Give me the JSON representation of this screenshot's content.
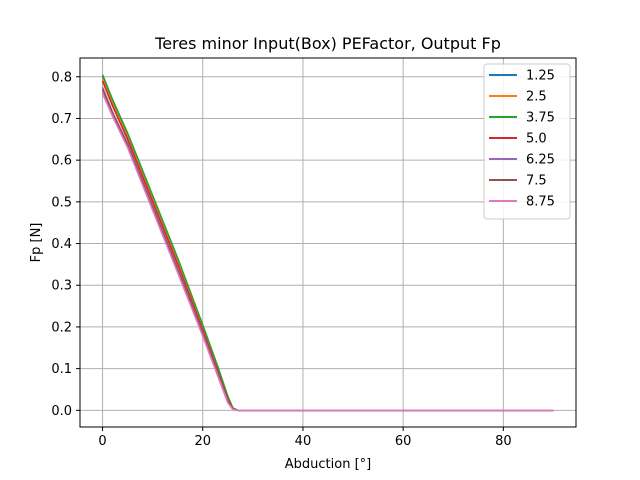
{
  "chart_data": {
    "type": "line",
    "title": "Teres minor Input(Box) PEFactor, Output Fp",
    "xlabel": "Abduction [°]",
    "ylabel": "Fp [N]",
    "xlim": [
      -4.5,
      94.5
    ],
    "ylim": [
      -0.04,
      0.845
    ],
    "xticks": [
      0,
      20,
      40,
      60,
      80
    ],
    "yticks": [
      0.0,
      0.1,
      0.2,
      0.3,
      0.4,
      0.5,
      0.6,
      0.7,
      0.8
    ],
    "ytick_labels": [
      "0.0",
      "0.1",
      "0.2",
      "0.3",
      "0.4",
      "0.5",
      "0.6",
      "0.7",
      "0.8"
    ],
    "grid": true,
    "legend_position": "top-right",
    "colors": [
      "#1f77b4",
      "#ff7f0e",
      "#2ca02c",
      "#d62728",
      "#9467bd",
      "#8c564b",
      "#e377c2"
    ],
    "series": [
      {
        "name": "1.25",
        "x": [
          0,
          2,
          5,
          10,
          15,
          20,
          23,
          25,
          26,
          27,
          30,
          40,
          50,
          60,
          70,
          80,
          90
        ],
        "y": [
          0.8,
          0.74,
          0.66,
          0.51,
          0.36,
          0.2,
          0.1,
          0.03,
          0.005,
          0.0,
          0.0,
          0.0,
          0.0,
          0.0,
          0.0,
          0.0,
          0.0
        ]
      },
      {
        "name": "2.5",
        "x": [
          0,
          2,
          5,
          10,
          15,
          20,
          23,
          25,
          26,
          27,
          30,
          40,
          50,
          60,
          70,
          80,
          90
        ],
        "y": [
          0.795,
          0.735,
          0.655,
          0.505,
          0.355,
          0.196,
          0.097,
          0.028,
          0.004,
          0.0,
          0.0,
          0.0,
          0.0,
          0.0,
          0.0,
          0.0,
          0.0
        ]
      },
      {
        "name": "3.75",
        "x": [
          0,
          2,
          5,
          10,
          15,
          20,
          23,
          25,
          26,
          27,
          30,
          40,
          50,
          60,
          70,
          80,
          90
        ],
        "y": [
          0.805,
          0.745,
          0.665,
          0.515,
          0.365,
          0.205,
          0.105,
          0.034,
          0.006,
          0.0,
          0.0,
          0.0,
          0.0,
          0.0,
          0.0,
          0.0,
          0.0
        ]
      },
      {
        "name": "5.0",
        "x": [
          0,
          2,
          5,
          10,
          15,
          20,
          23,
          25,
          26,
          27,
          30,
          40,
          50,
          60,
          70,
          80,
          90
        ],
        "y": [
          0.79,
          0.73,
          0.65,
          0.5,
          0.35,
          0.192,
          0.094,
          0.026,
          0.004,
          0.0,
          0.0,
          0.0,
          0.0,
          0.0,
          0.0,
          0.0,
          0.0
        ]
      },
      {
        "name": "6.25",
        "x": [
          0,
          2,
          5,
          10,
          15,
          20,
          23,
          25,
          26,
          27,
          30,
          40,
          50,
          60,
          70,
          80,
          90
        ],
        "y": [
          0.775,
          0.715,
          0.64,
          0.49,
          0.34,
          0.185,
          0.088,
          0.022,
          0.003,
          0.0,
          0.0,
          0.0,
          0.0,
          0.0,
          0.0,
          0.0,
          0.0
        ]
      },
      {
        "name": "7.5",
        "x": [
          0,
          2,
          5,
          10,
          15,
          20,
          23,
          25,
          26,
          27,
          30,
          40,
          50,
          60,
          70,
          80,
          90
        ],
        "y": [
          0.77,
          0.712,
          0.636,
          0.486,
          0.336,
          0.182,
          0.085,
          0.02,
          0.003,
          0.0,
          0.0,
          0.0,
          0.0,
          0.0,
          0.0,
          0.0,
          0.0
        ]
      },
      {
        "name": "8.75",
        "x": [
          0,
          2,
          5,
          10,
          15,
          20,
          23,
          25,
          26,
          27,
          30,
          40,
          50,
          60,
          70,
          80,
          90
        ],
        "y": [
          0.76,
          0.705,
          0.63,
          0.48,
          0.33,
          0.178,
          0.082,
          0.018,
          0.002,
          0.0,
          0.0,
          0.0,
          0.0,
          0.0,
          0.0,
          0.0,
          0.0
        ]
      }
    ]
  }
}
